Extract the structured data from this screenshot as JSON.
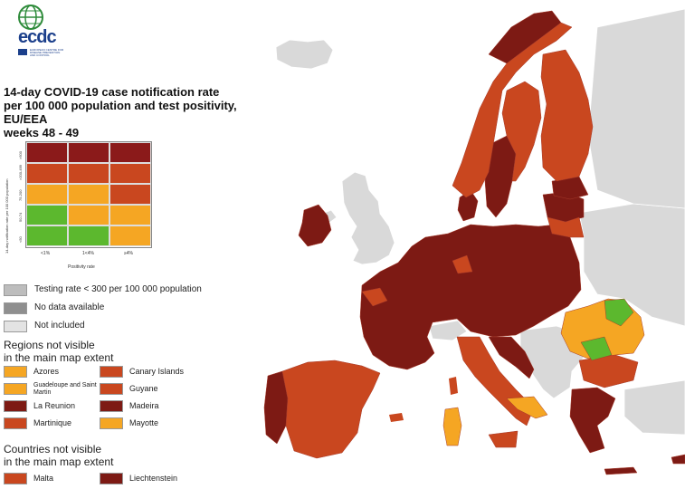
{
  "logo": {
    "text": "ecdc",
    "subtext_lines": [
      "EUROPEAN CENTRE FOR",
      "DISEASE PREVENTION",
      "AND CONTROL"
    ]
  },
  "title_lines": [
    "14-day COVID-19 case notification rate",
    "per 100 000 population and test positivity, EU/EEA",
    "weeks 48 - 49"
  ],
  "matrix": {
    "y_axis_label": "14-day notification rate per 100 000 population",
    "y_ticks": [
      ">500",
      ">200-499",
      "75-200",
      "50-74",
      "<50"
    ],
    "x_axis_label": "Positivity rate",
    "x_ticks": [
      "<1%",
      "1<4%",
      "≥4%"
    ],
    "colors": [
      [
        "#8b1a1a",
        "#8b1a1a",
        "#8b1a1a"
      ],
      [
        "#c9471f",
        "#c9471f",
        "#c9471f"
      ],
      [
        "#f5a623",
        "#f5a623",
        "#c9471f"
      ],
      [
        "#5cb82e",
        "#f5a623",
        "#f5a623"
      ],
      [
        "#5cb82e",
        "#5cb82e",
        "#f5a623"
      ]
    ]
  },
  "grey_legend": [
    {
      "label": "Testing rate < 300 per 100 000 population",
      "color": "#bdbdbd"
    },
    {
      "label": "No data available",
      "color": "#8f8f8f"
    },
    {
      "label": "Not included",
      "color": "#e3e3e3"
    }
  ],
  "regions_heading": [
    "Regions not visible",
    "in the main map extent"
  ],
  "regions": [
    {
      "label": "Azores",
      "color": "#f5a623"
    },
    {
      "label": "Canary Islands",
      "color": "#c9471f"
    },
    {
      "label": "Guadeloupe and Saint Martin",
      "color": "#f5a623"
    },
    {
      "label": "Guyane",
      "color": "#c9471f"
    },
    {
      "label": "La Reunion",
      "color": "#7d1a14"
    },
    {
      "label": "Madeira",
      "color": "#7d1a14"
    },
    {
      "label": "Martinique",
      "color": "#c9471f"
    },
    {
      "label": "Mayotte",
      "color": "#f5a623"
    }
  ],
  "countries_heading": [
    "Countries not visible",
    "in the main map extent"
  ],
  "countries": [
    {
      "label": "Malta",
      "color": "#c9471f"
    },
    {
      "label": "Liechtenstein",
      "color": "#7d1a14"
    }
  ],
  "palette": {
    "darkred": "#7d1a14",
    "red": "#c9471f",
    "orange": "#f5a623",
    "green": "#5cb82e",
    "notincluded": "#d9d9d9",
    "sea": "#ffffff"
  }
}
